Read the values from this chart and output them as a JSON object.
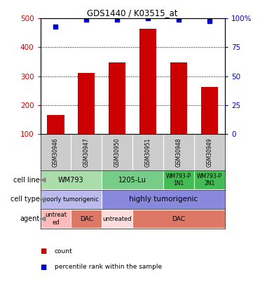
{
  "title": "GDS1440 / K03515_at",
  "samples": [
    "GSM30946",
    "GSM30947",
    "GSM30950",
    "GSM30951",
    "GSM30948",
    "GSM30949"
  ],
  "counts": [
    165,
    310,
    348,
    465,
    347,
    262
  ],
  "percentiles": [
    93,
    99,
    99,
    100,
    99,
    98
  ],
  "ylim_left": [
    100,
    500
  ],
  "ylim_right": [
    0,
    100
  ],
  "yticks_left": [
    100,
    200,
    300,
    400,
    500
  ],
  "yticks_right": [
    0,
    25,
    50,
    75,
    100
  ],
  "ytick_labels_right": [
    "0",
    "25",
    "50",
    "75",
    "100%"
  ],
  "bar_color": "#cc0000",
  "dot_color": "#0000cc",
  "bar_bottom": 100,
  "cell_line_data": [
    {
      "label": "WM793",
      "start": 0,
      "end": 2,
      "color": "#aaddaa",
      "fontsize": 7
    },
    {
      "label": "1205-Lu",
      "start": 2,
      "end": 4,
      "color": "#77cc88",
      "fontsize": 7
    },
    {
      "label": "WM793-P\n1N1",
      "start": 4,
      "end": 5,
      "color": "#44bb55",
      "fontsize": 5.5
    },
    {
      "label": "WM793-P\n2N1",
      "start": 5,
      "end": 6,
      "color": "#44bb55",
      "fontsize": 5.5
    }
  ],
  "cell_type_data": [
    {
      "label": "poorly tumorigenic",
      "start": 0,
      "end": 2,
      "color": "#bbbbee",
      "fontsize": 6
    },
    {
      "label": "highly tumorigenic",
      "start": 2,
      "end": 6,
      "color": "#8888dd",
      "fontsize": 7.5
    }
  ],
  "agent_data": [
    {
      "label": "untreat\ned",
      "start": 0,
      "end": 1,
      "color": "#ffbbbb",
      "fontsize": 6
    },
    {
      "label": "DAC",
      "start": 1,
      "end": 2,
      "color": "#dd7766",
      "fontsize": 6.5
    },
    {
      "label": "untreated",
      "start": 2,
      "end": 3,
      "color": "#ffdddd",
      "fontsize": 6
    },
    {
      "label": "DAC",
      "start": 3,
      "end": 6,
      "color": "#dd7766",
      "fontsize": 6.5
    }
  ],
  "row_labels": [
    "cell line",
    "cell type",
    "agent"
  ],
  "sample_bg_color": "#cccccc",
  "legend_items": [
    {
      "color": "#cc0000",
      "label": "count"
    },
    {
      "color": "#0000cc",
      "label": "percentile rank within the sample"
    }
  ]
}
